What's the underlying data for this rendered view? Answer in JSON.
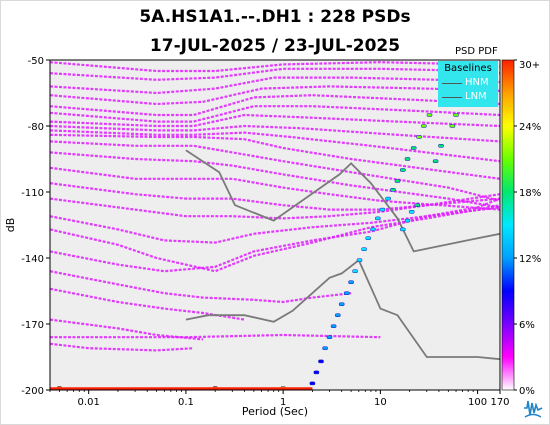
{
  "title": "5A.HS1A1.--.DH1 : 228 PSDs",
  "subtitle": "17-JUL-2025 / 23-JUL-2025",
  "colorbar_title": "PSD PDF",
  "legend": {
    "title": "Baselines",
    "items": [
      "HNM",
      "LNM"
    ]
  },
  "colors": {
    "plot_background": "#eeeeee",
    "band_color": "#e01bff",
    "baseline_color": "#7a7a7a",
    "legend_background": "#33e6ee",
    "colorscale": [
      "#ffffff",
      "#ff00ff",
      "#7a00ff",
      "#0000ff",
      "#00a0ff",
      "#00e8ff",
      "#00e870",
      "#6aff00",
      "#ffff00",
      "#ffa000",
      "#ff2000"
    ]
  },
  "chart_data": {
    "type": "heatmap",
    "title": "5A.HS1A1.--.DH1 : 228 PSDs",
    "subtitle": "17-JUL-2025 / 23-JUL-2025",
    "xlabel": "Period (Sec)",
    "ylabel": "dB",
    "x_scale": "log",
    "xlim": [
      0.004,
      170
    ],
    "ylim": [
      -200,
      -50
    ],
    "x_ticks": [
      {
        "value": 0.01,
        "label": "0.01"
      },
      {
        "value": 0.1,
        "label": "0.1"
      },
      {
        "value": 1,
        "label": "1"
      },
      {
        "value": 10,
        "label": "10"
      },
      {
        "value": 100,
        "label": "100"
      },
      {
        "value": 170,
        "label": "170"
      }
    ],
    "y_ticks": [
      {
        "value": -50,
        "label": "-50"
      },
      {
        "value": -80,
        "label": "-80"
      },
      {
        "value": -110,
        "label": "-110"
      },
      {
        "value": -140,
        "label": "-140"
      },
      {
        "value": -170,
        "label": "-170"
      },
      {
        "value": -200,
        "label": "-200"
      }
    ],
    "grid": false,
    "colorbar": {
      "title": "PSD PDF",
      "range": [
        0,
        30
      ],
      "ticks": [
        {
          "value": 0,
          "label": "0%"
        },
        {
          "value": 6,
          "label": "6%"
        },
        {
          "value": 12,
          "label": "12%"
        },
        {
          "value": 18,
          "label": "18%"
        },
        {
          "value": 24,
          "label": "24%"
        },
        {
          "value": 30,
          "label": "30+"
        }
      ]
    },
    "baselines": [
      {
        "name": "HNM",
        "x": [
          0.1,
          0.22,
          0.32,
          0.8,
          3.8,
          5,
          8,
          15,
          22,
          100,
          170
        ],
        "y": [
          -91,
          -101,
          -116,
          -123,
          -102,
          -97,
          -106,
          -122,
          -137,
          -131,
          -129
        ]
      },
      {
        "name": "LNM",
        "x": [
          0.1,
          0.17,
          0.4,
          0.8,
          1.25,
          3,
          4,
          6,
          10,
          15,
          30,
          100,
          170
        ],
        "y": [
          -168,
          -166,
          -166,
          -169,
          -164,
          -149,
          -147,
          -141,
          -163,
          -166,
          -185,
          -185,
          -186
        ]
      }
    ],
    "psd_bands": [
      {
        "x": [
          0.004,
          0.05,
          0.2,
          1,
          10,
          100,
          170
        ],
        "y": [
          -51,
          -55,
          -55,
          -52,
          -51,
          -52,
          -53
        ]
      },
      {
        "x": [
          0.004,
          0.05,
          0.2,
          1,
          10,
          100,
          170
        ],
        "y": [
          -56,
          -59,
          -58,
          -54,
          -54,
          -55,
          -56
        ]
      },
      {
        "x": [
          0.004,
          0.05,
          0.2,
          0.8,
          5,
          40,
          170
        ],
        "y": [
          -62,
          -65,
          -63,
          -58,
          -58,
          -59,
          -60
        ]
      },
      {
        "x": [
          0.004,
          0.05,
          0.15,
          0.6,
          3,
          30,
          170
        ],
        "y": [
          -66,
          -70,
          -69,
          -63,
          -62,
          -63,
          -64
        ]
      },
      {
        "x": [
          0.004,
          0.05,
          0.12,
          0.5,
          2,
          20,
          170
        ],
        "y": [
          -71,
          -75,
          -75,
          -67,
          -66,
          -68,
          -70
        ]
      },
      {
        "x": [
          0.004,
          0.05,
          0.12,
          0.5,
          2,
          20,
          170
        ],
        "y": [
          -74,
          -78,
          -78,
          -71,
          -71,
          -73,
          -75
        ]
      },
      {
        "x": [
          0.004,
          0.05,
          0.12,
          0.4,
          1.5,
          15,
          170
        ],
        "y": [
          -78,
          -80,
          -80,
          -75,
          -76,
          -78,
          -80
        ]
      },
      {
        "x": [
          0.004,
          0.05,
          0.12,
          0.4,
          1.5,
          15,
          170
        ],
        "y": [
          -80,
          -82,
          -82,
          -80,
          -81,
          -84,
          -87
        ]
      },
      {
        "x": [
          0.004,
          0.05,
          0.12,
          0.4,
          1.2,
          8,
          170
        ],
        "y": [
          -82,
          -84,
          -84,
          -83,
          -85,
          -89,
          -96
        ]
      },
      {
        "x": [
          0.004,
          0.05,
          0.12,
          0.4,
          1,
          5,
          170
        ],
        "y": [
          -84,
          -85,
          -85,
          -86,
          -90,
          -95,
          -104
        ]
      },
      {
        "x": [
          0.004,
          0.03,
          0.12,
          0.3,
          1,
          5,
          50,
          170
        ],
        "y": [
          -87,
          -89,
          -89,
          -92,
          -96,
          -101,
          -108,
          -114
        ]
      },
      {
        "x": [
          0.004,
          0.03,
          0.12,
          0.3,
          1,
          5,
          50,
          170
        ],
        "y": [
          -92,
          -95,
          -96,
          -98,
          -102,
          -107,
          -113,
          -117
        ]
      },
      {
        "x": [
          0.004,
          0.03,
          0.12,
          0.3,
          1,
          3,
          10,
          170
        ],
        "y": [
          -99,
          -104,
          -104,
          -104,
          -108,
          -111,
          -114,
          -118
        ]
      },
      {
        "x": [
          0.004,
          0.03,
          0.1,
          0.3,
          1,
          3,
          10,
          30,
          170
        ],
        "y": [
          -106,
          -111,
          -113,
          -113,
          -116,
          -118,
          -118,
          -116,
          -113
        ]
      },
      {
        "x": [
          0.004,
          0.03,
          0.1,
          0.3,
          1,
          3,
          10,
          30,
          170
        ],
        "y": [
          -113,
          -118,
          -121,
          -121,
          -122,
          -121,
          -119,
          -116,
          -111
        ]
      },
      {
        "x": [
          0.004,
          0.02,
          0.06,
          0.2,
          0.5,
          2,
          8,
          30,
          100,
          170
        ],
        "y": [
          -121,
          -127,
          -132,
          -133,
          -129,
          -126,
          -124,
          -121,
          -117,
          -113
        ]
      },
      {
        "x": [
          0.004,
          0.02,
          0.05,
          0.2,
          0.5,
          2,
          8,
          30,
          100,
          170
        ],
        "y": [
          -127,
          -134,
          -140,
          -146,
          -139,
          -133,
          -126,
          -122,
          -118,
          -116
        ]
      },
      {
        "x": [
          0.004,
          0.02,
          0.06,
          0.2,
          0.5,
          2,
          8,
          30,
          170
        ],
        "y": [
          -137,
          -143,
          -146,
          -144,
          -137,
          -132,
          -128,
          -121,
          -117
        ]
      },
      {
        "x": [
          0.004,
          0.02,
          0.06,
          0.15,
          0.5,
          1,
          2,
          5
        ],
        "y": [
          -146,
          -152,
          -156,
          -158,
          -159,
          -160,
          -158,
          -156
        ]
      },
      {
        "x": [
          0.004,
          0.02,
          0.06,
          0.15,
          0.4
        ],
        "y": [
          -154,
          -160,
          -163,
          -165,
          -168
        ]
      },
      {
        "x": [
          0.004,
          0.02,
          0.05,
          0.15
        ],
        "y": [
          -168,
          -172,
          -175,
          -177
        ]
      },
      {
        "x": [
          0.004,
          0.01,
          0.05,
          0.12
        ],
        "y": [
          -179,
          -181,
          -182,
          -181
        ]
      },
      {
        "x": [
          0.004,
          0.1,
          1,
          10
        ],
        "y": [
          -176,
          -176,
          -175,
          -176
        ]
      }
    ],
    "hotspots": [
      {
        "x": 2.0,
        "y": -197,
        "pct": 9
      },
      {
        "x": 2.2,
        "y": -192,
        "pct": 10
      },
      {
        "x": 2.45,
        "y": -187,
        "pct": 10
      },
      {
        "x": 2.7,
        "y": -181,
        "pct": 11
      },
      {
        "x": 3.0,
        "y": -176,
        "pct": 11
      },
      {
        "x": 3.3,
        "y": -171,
        "pct": 12
      },
      {
        "x": 3.65,
        "y": -166,
        "pct": 12
      },
      {
        "x": 4.0,
        "y": -161,
        "pct": 13
      },
      {
        "x": 4.5,
        "y": -156,
        "pct": 12
      },
      {
        "x": 5.0,
        "y": -151,
        "pct": 13
      },
      {
        "x": 5.5,
        "y": -146,
        "pct": 14
      },
      {
        "x": 6.1,
        "y": -141,
        "pct": 14
      },
      {
        "x": 6.8,
        "y": -136,
        "pct": 14
      },
      {
        "x": 7.5,
        "y": -131,
        "pct": 15
      },
      {
        "x": 8.4,
        "y": -127,
        "pct": 15
      },
      {
        "x": 9.4,
        "y": -122,
        "pct": 16
      },
      {
        "x": 10.5,
        "y": -118,
        "pct": 16
      },
      {
        "x": 12,
        "y": -113,
        "pct": 16
      },
      {
        "x": 13.5,
        "y": -109,
        "pct": 17
      },
      {
        "x": 15,
        "y": -105,
        "pct": 17
      },
      {
        "x": 17,
        "y": -100,
        "pct": 18
      },
      {
        "x": 19,
        "y": -95,
        "pct": 18
      },
      {
        "x": 22,
        "y": -90,
        "pct": 19
      },
      {
        "x": 25,
        "y": -85,
        "pct": 20
      },
      {
        "x": 28,
        "y": -80,
        "pct": 21
      },
      {
        "x": 32,
        "y": -75,
        "pct": 22
      },
      {
        "x": 17,
        "y": -127,
        "pct": 14
      },
      {
        "x": 19,
        "y": -123,
        "pct": 15
      },
      {
        "x": 21,
        "y": -119,
        "pct": 16
      },
      {
        "x": 24,
        "y": -116,
        "pct": 17
      },
      {
        "x": 37,
        "y": -96,
        "pct": 19
      },
      {
        "x": 42,
        "y": -89,
        "pct": 18
      },
      {
        "x": 55,
        "y": -80,
        "pct": 21
      },
      {
        "x": 60,
        "y": -75,
        "pct": 22
      },
      {
        "x": 0.005,
        "y": -199,
        "pct": 26
      },
      {
        "x": 0.2,
        "y": -199,
        "pct": 26
      },
      {
        "x": 1.0,
        "y": -199,
        "pct": 25
      }
    ]
  }
}
